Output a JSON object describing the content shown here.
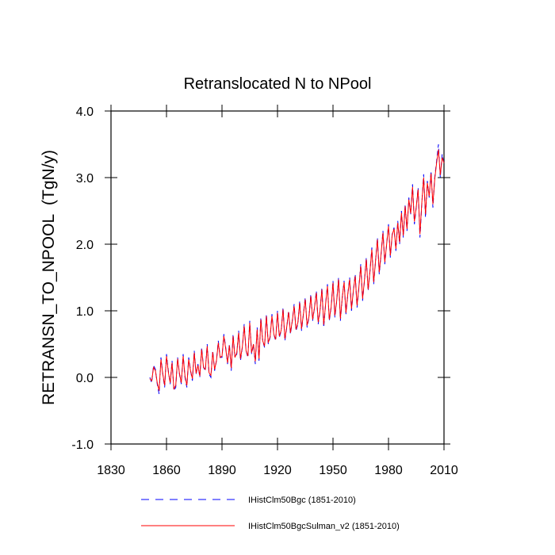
{
  "chart_data": {
    "type": "line",
    "title": "Retranslocated N to NPool",
    "y_label": "RETRANSN_TO_NPOOL  (TgN/y)",
    "xlim": [
      1830,
      2010
    ],
    "xticks": [
      1830,
      1860,
      1890,
      1920,
      1950,
      1980,
      2010
    ],
    "ylim": [
      -1,
      4
    ],
    "yticks": [
      {
        "value": -1,
        "label": "-1.0"
      },
      {
        "value": 0,
        "label": "0.0"
      },
      {
        "value": 1,
        "label": "1.0"
      },
      {
        "value": 2,
        "label": "2.0"
      },
      {
        "value": 3,
        "label": "3.0"
      },
      {
        "value": 4,
        "label": "4.0"
      }
    ],
    "x": [
      1851,
      1852,
      1853,
      1854,
      1855,
      1856,
      1857,
      1858,
      1859,
      1860,
      1861,
      1862,
      1863,
      1864,
      1865,
      1866,
      1867,
      1868,
      1869,
      1870,
      1871,
      1872,
      1873,
      1874,
      1875,
      1876,
      1877,
      1878,
      1879,
      1880,
      1881,
      1882,
      1883,
      1884,
      1885,
      1886,
      1887,
      1888,
      1889,
      1890,
      1891,
      1892,
      1893,
      1894,
      1895,
      1896,
      1897,
      1898,
      1899,
      1900,
      1901,
      1902,
      1903,
      1904,
      1905,
      1906,
      1907,
      1908,
      1909,
      1910,
      1911,
      1912,
      1913,
      1914,
      1915,
      1916,
      1917,
      1918,
      1919,
      1920,
      1921,
      1922,
      1923,
      1924,
      1925,
      1926,
      1927,
      1928,
      1929,
      1930,
      1931,
      1932,
      1933,
      1934,
      1935,
      1936,
      1937,
      1938,
      1939,
      1940,
      1941,
      1942,
      1943,
      1944,
      1945,
      1946,
      1947,
      1948,
      1949,
      1950,
      1951,
      1952,
      1953,
      1954,
      1955,
      1956,
      1957,
      1958,
      1959,
      1960,
      1961,
      1962,
      1963,
      1964,
      1965,
      1966,
      1967,
      1968,
      1969,
      1970,
      1971,
      1972,
      1973,
      1974,
      1975,
      1976,
      1977,
      1978,
      1979,
      1980,
      1981,
      1982,
      1983,
      1984,
      1985,
      1986,
      1987,
      1988,
      1989,
      1990,
      1991,
      1992,
      1993,
      1994,
      1995,
      1996,
      1997,
      1998,
      1999,
      2000,
      2001,
      2002,
      2003,
      2004,
      2005,
      2006,
      2007,
      2008,
      2009,
      2010
    ],
    "series": [
      {
        "name": "IHistClm50Bgc (1851-2010)",
        "color": "#0000ff",
        "dash": true,
        "values": [
          0.0,
          -0.08,
          0.18,
          0.12,
          -0.1,
          -0.25,
          0.3,
          0.05,
          -0.15,
          0.35,
          0.1,
          -0.1,
          0.25,
          -0.2,
          -0.15,
          0.3,
          0.05,
          -0.1,
          0.35,
          0.0,
          -0.15,
          0.3,
          0.1,
          -0.05,
          0.4,
          0.05,
          0.2,
          0.0,
          0.45,
          0.15,
          0.1,
          0.5,
          0.05,
          0.0,
          0.4,
          0.1,
          0.25,
          0.55,
          0.3,
          0.3,
          0.65,
          0.45,
          0.2,
          0.5,
          0.1,
          0.65,
          0.3,
          0.35,
          0.7,
          0.25,
          0.45,
          0.8,
          0.4,
          0.3,
          0.85,
          0.35,
          0.5,
          0.2,
          0.75,
          0.25,
          0.9,
          0.55,
          0.45,
          0.95,
          0.5,
          0.6,
          0.95,
          0.65,
          0.55,
          1.0,
          0.6,
          0.7,
          1.05,
          0.55,
          0.75,
          1.0,
          0.65,
          0.85,
          1.1,
          0.7,
          0.8,
          1.15,
          0.7,
          0.95,
          1.2,
          0.75,
          0.9,
          1.25,
          0.85,
          1.05,
          1.3,
          0.8,
          1.0,
          1.35,
          0.75,
          1.1,
          1.4,
          0.85,
          1.05,
          1.45,
          0.9,
          1.15,
          1.5,
          0.85,
          1.2,
          1.45,
          0.95,
          1.25,
          1.5,
          1.0,
          1.3,
          1.55,
          1.05,
          1.35,
          1.7,
          1.15,
          1.45,
          1.8,
          1.3,
          1.6,
          1.95,
          1.4,
          1.75,
          2.1,
          1.55,
          1.85,
          2.2,
          1.7,
          2.0,
          2.3,
          1.8,
          2.15,
          2.25,
          1.9,
          2.35,
          2.0,
          2.5,
          2.1,
          2.6,
          2.2,
          2.7,
          2.45,
          2.9,
          2.3,
          2.55,
          2.85,
          2.1,
          2.6,
          3.05,
          2.4,
          2.95,
          2.7,
          3.1,
          2.55,
          3.0,
          3.25,
          3.5,
          3.0,
          3.35,
          3.2
        ]
      },
      {
        "name": "IHistClm50BgcSulman_v2 (1851-2010)",
        "color": "#ff0000",
        "dash": false,
        "values": [
          -0.02,
          -0.05,
          0.15,
          0.1,
          -0.08,
          -0.2,
          0.27,
          0.05,
          -0.12,
          0.32,
          0.08,
          -0.08,
          0.22,
          -0.17,
          -0.12,
          0.28,
          0.06,
          -0.08,
          0.32,
          0.02,
          -0.12,
          0.27,
          0.1,
          -0.02,
          0.37,
          0.06,
          0.18,
          0.02,
          0.42,
          0.15,
          0.12,
          0.47,
          0.07,
          0.03,
          0.38,
          0.12,
          0.25,
          0.52,
          0.3,
          0.32,
          0.62,
          0.43,
          0.22,
          0.48,
          0.14,
          0.62,
          0.3,
          0.37,
          0.67,
          0.28,
          0.46,
          0.77,
          0.4,
          0.32,
          0.82,
          0.37,
          0.5,
          0.24,
          0.72,
          0.28,
          0.87,
          0.55,
          0.47,
          0.92,
          0.52,
          0.61,
          0.92,
          0.65,
          0.57,
          0.97,
          0.62,
          0.71,
          1.02,
          0.58,
          0.76,
          0.98,
          0.67,
          0.85,
          1.07,
          0.72,
          0.82,
          1.12,
          0.73,
          0.95,
          1.17,
          0.78,
          0.91,
          1.22,
          0.87,
          1.05,
          1.27,
          0.83,
          1.01,
          1.32,
          0.79,
          1.1,
          1.37,
          0.87,
          1.06,
          1.42,
          0.93,
          1.15,
          1.47,
          0.88,
          1.2,
          1.43,
          0.97,
          1.25,
          1.47,
          1.03,
          1.3,
          1.52,
          1.08,
          1.36,
          1.67,
          1.18,
          1.46,
          1.77,
          1.32,
          1.6,
          1.92,
          1.43,
          1.75,
          2.07,
          1.58,
          1.86,
          2.17,
          1.73,
          2.0,
          2.27,
          1.83,
          2.14,
          2.23,
          1.93,
          2.32,
          2.03,
          2.47,
          2.13,
          2.57,
          2.23,
          2.67,
          2.46,
          2.86,
          2.34,
          2.56,
          2.82,
          2.15,
          2.62,
          3.0,
          2.45,
          2.92,
          2.72,
          3.06,
          2.6,
          2.98,
          3.22,
          3.42,
          3.04,
          3.3,
          3.22
        ]
      }
    ]
  }
}
